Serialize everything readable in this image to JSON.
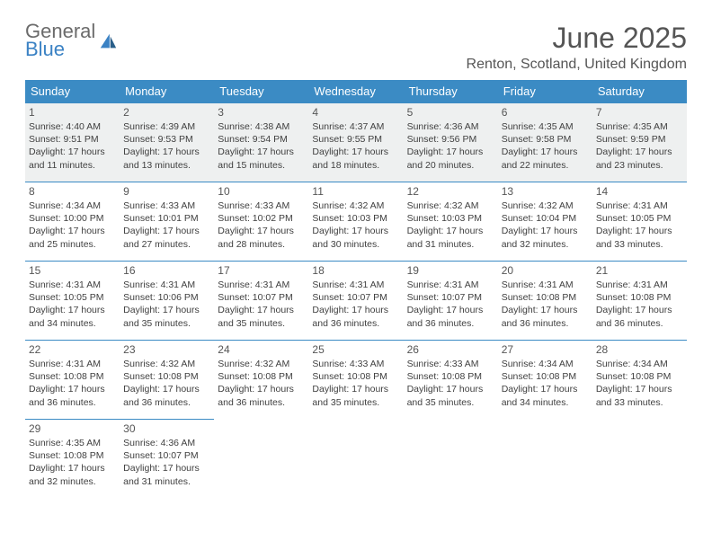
{
  "logo": {
    "line1": "General",
    "line2": "Blue"
  },
  "title": "June 2025",
  "location": "Renton, Scotland, United Kingdom",
  "colors": {
    "header_bg": "#3b8bc4",
    "header_text": "#ffffff",
    "shaded_bg": "#eef0f0",
    "border": "#3b8bc4",
    "logo_gray": "#6b6b6b",
    "logo_blue": "#3b82c4"
  },
  "dayNames": [
    "Sunday",
    "Monday",
    "Tuesday",
    "Wednesday",
    "Thursday",
    "Friday",
    "Saturday"
  ],
  "days": [
    {
      "n": 1,
      "sunrise": "4:40 AM",
      "sunset": "9:51 PM",
      "daylight": "17 hours and 11 minutes."
    },
    {
      "n": 2,
      "sunrise": "4:39 AM",
      "sunset": "9:53 PM",
      "daylight": "17 hours and 13 minutes."
    },
    {
      "n": 3,
      "sunrise": "4:38 AM",
      "sunset": "9:54 PM",
      "daylight": "17 hours and 15 minutes."
    },
    {
      "n": 4,
      "sunrise": "4:37 AM",
      "sunset": "9:55 PM",
      "daylight": "17 hours and 18 minutes."
    },
    {
      "n": 5,
      "sunrise": "4:36 AM",
      "sunset": "9:56 PM",
      "daylight": "17 hours and 20 minutes."
    },
    {
      "n": 6,
      "sunrise": "4:35 AM",
      "sunset": "9:58 PM",
      "daylight": "17 hours and 22 minutes."
    },
    {
      "n": 7,
      "sunrise": "4:35 AM",
      "sunset": "9:59 PM",
      "daylight": "17 hours and 23 minutes."
    },
    {
      "n": 8,
      "sunrise": "4:34 AM",
      "sunset": "10:00 PM",
      "daylight": "17 hours and 25 minutes."
    },
    {
      "n": 9,
      "sunrise": "4:33 AM",
      "sunset": "10:01 PM",
      "daylight": "17 hours and 27 minutes."
    },
    {
      "n": 10,
      "sunrise": "4:33 AM",
      "sunset": "10:02 PM",
      "daylight": "17 hours and 28 minutes."
    },
    {
      "n": 11,
      "sunrise": "4:32 AM",
      "sunset": "10:03 PM",
      "daylight": "17 hours and 30 minutes."
    },
    {
      "n": 12,
      "sunrise": "4:32 AM",
      "sunset": "10:03 PM",
      "daylight": "17 hours and 31 minutes."
    },
    {
      "n": 13,
      "sunrise": "4:32 AM",
      "sunset": "10:04 PM",
      "daylight": "17 hours and 32 minutes."
    },
    {
      "n": 14,
      "sunrise": "4:31 AM",
      "sunset": "10:05 PM",
      "daylight": "17 hours and 33 minutes."
    },
    {
      "n": 15,
      "sunrise": "4:31 AM",
      "sunset": "10:05 PM",
      "daylight": "17 hours and 34 minutes."
    },
    {
      "n": 16,
      "sunrise": "4:31 AM",
      "sunset": "10:06 PM",
      "daylight": "17 hours and 35 minutes."
    },
    {
      "n": 17,
      "sunrise": "4:31 AM",
      "sunset": "10:07 PM",
      "daylight": "17 hours and 35 minutes."
    },
    {
      "n": 18,
      "sunrise": "4:31 AM",
      "sunset": "10:07 PM",
      "daylight": "17 hours and 36 minutes."
    },
    {
      "n": 19,
      "sunrise": "4:31 AM",
      "sunset": "10:07 PM",
      "daylight": "17 hours and 36 minutes."
    },
    {
      "n": 20,
      "sunrise": "4:31 AM",
      "sunset": "10:08 PM",
      "daylight": "17 hours and 36 minutes."
    },
    {
      "n": 21,
      "sunrise": "4:31 AM",
      "sunset": "10:08 PM",
      "daylight": "17 hours and 36 minutes."
    },
    {
      "n": 22,
      "sunrise": "4:31 AM",
      "sunset": "10:08 PM",
      "daylight": "17 hours and 36 minutes."
    },
    {
      "n": 23,
      "sunrise": "4:32 AM",
      "sunset": "10:08 PM",
      "daylight": "17 hours and 36 minutes."
    },
    {
      "n": 24,
      "sunrise": "4:32 AM",
      "sunset": "10:08 PM",
      "daylight": "17 hours and 36 minutes."
    },
    {
      "n": 25,
      "sunrise": "4:33 AM",
      "sunset": "10:08 PM",
      "daylight": "17 hours and 35 minutes."
    },
    {
      "n": 26,
      "sunrise": "4:33 AM",
      "sunset": "10:08 PM",
      "daylight": "17 hours and 35 minutes."
    },
    {
      "n": 27,
      "sunrise": "4:34 AM",
      "sunset": "10:08 PM",
      "daylight": "17 hours and 34 minutes."
    },
    {
      "n": 28,
      "sunrise": "4:34 AM",
      "sunset": "10:08 PM",
      "daylight": "17 hours and 33 minutes."
    },
    {
      "n": 29,
      "sunrise": "4:35 AM",
      "sunset": "10:08 PM",
      "daylight": "17 hours and 32 minutes."
    },
    {
      "n": 30,
      "sunrise": "4:36 AM",
      "sunset": "10:07 PM",
      "daylight": "17 hours and 31 minutes."
    }
  ],
  "labels": {
    "sunrise": "Sunrise: ",
    "sunset": "Sunset: ",
    "daylight": "Daylight: "
  },
  "layout": {
    "startWeekday": 0,
    "rows": 5,
    "cols": 7
  }
}
